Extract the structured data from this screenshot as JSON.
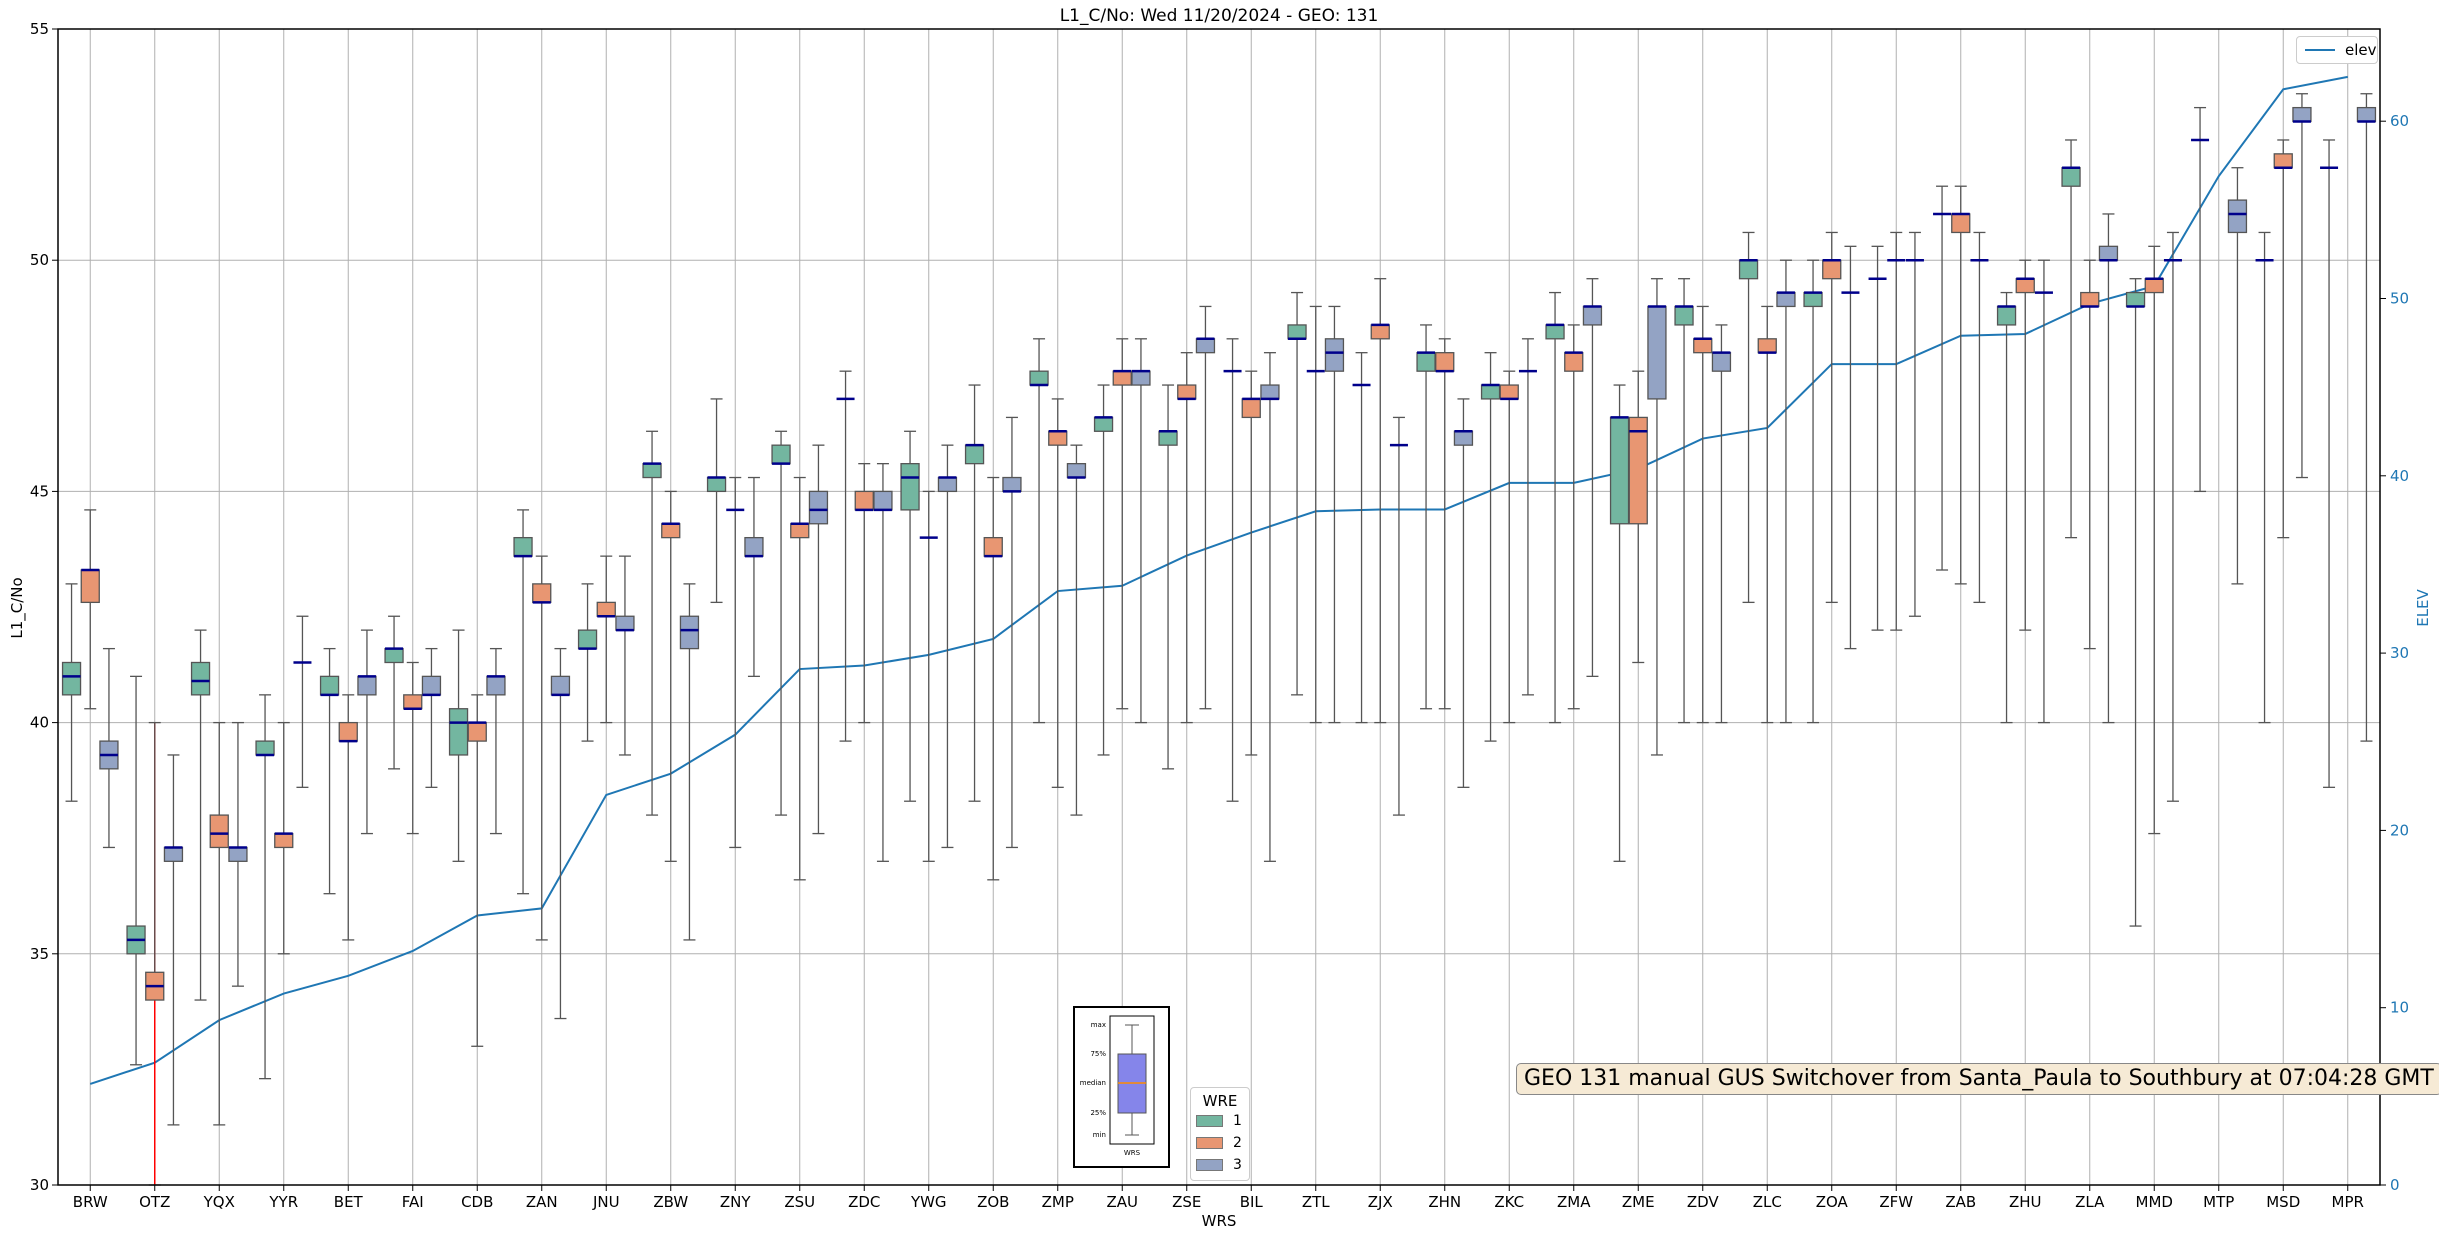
{
  "chart_data": {
    "type": "box",
    "title": "L1_C/No: Wed 11/20/2024 - GEO: 131",
    "xlabel": "WRS",
    "ylabel": "L1_C/No",
    "y2label": "ELEV",
    "ylim": [
      30,
      55
    ],
    "yticks": [
      30,
      35,
      40,
      45,
      50,
      55
    ],
    "y2lim": [
      0,
      65.2
    ],
    "y2ticks": [
      0,
      10,
      20,
      30,
      40,
      50,
      60
    ],
    "grid": true,
    "stat_order": [
      "min",
      "q1",
      "median",
      "q3",
      "max"
    ],
    "categories": [
      "BRW",
      "OTZ",
      "YQX",
      "YYR",
      "BET",
      "FAI",
      "CDB",
      "ZAN",
      "JNU",
      "ZBW",
      "ZNY",
      "ZSU",
      "ZDC",
      "YWG",
      "ZOB",
      "ZMP",
      "ZAU",
      "ZSE",
      "BIL",
      "ZTL",
      "ZJX",
      "ZHN",
      "ZKC",
      "ZMA",
      "ZME",
      "ZDV",
      "ZLC",
      "ZOA",
      "ZFW",
      "ZAB",
      "ZHU",
      "ZLA",
      "MMD",
      "MTP",
      "MSD",
      "MPR"
    ],
    "series": [
      {
        "name": "1",
        "color": "#73b6a0",
        "boxes": [
          [
            38.3,
            40.6,
            41.0,
            41.3,
            43.0
          ],
          [
            32.6,
            35.0,
            35.3,
            35.6,
            41.0
          ],
          [
            34.0,
            40.6,
            40.9,
            41.3,
            42.0
          ],
          [
            32.3,
            39.3,
            39.3,
            39.6,
            40.6
          ],
          [
            36.3,
            40.6,
            40.6,
            41.0,
            41.6
          ],
          [
            39.0,
            41.3,
            41.6,
            41.6,
            42.3
          ],
          [
            37.0,
            39.3,
            40.0,
            40.3,
            42.0
          ],
          [
            36.3,
            43.6,
            43.6,
            44.0,
            44.6
          ],
          [
            39.6,
            41.6,
            41.6,
            42.0,
            43.0
          ],
          [
            38.0,
            45.3,
            45.6,
            45.6,
            46.3
          ],
          [
            42.6,
            45.0,
            45.3,
            45.3,
            47.0
          ],
          [
            38.0,
            45.6,
            45.6,
            46.0,
            46.3
          ],
          [
            39.6,
            47.0,
            47.0,
            47.0,
            47.6
          ],
          [
            38.3,
            44.6,
            45.3,
            45.6,
            46.3
          ],
          [
            38.3,
            45.6,
            46.0,
            46.0,
            47.3
          ],
          [
            40.0,
            47.3,
            47.3,
            47.6,
            48.3
          ],
          [
            39.3,
            46.3,
            46.6,
            46.6,
            47.3
          ],
          [
            39.0,
            46.0,
            46.3,
            46.3,
            47.3
          ],
          [
            38.3,
            47.6,
            47.6,
            47.6,
            48.3
          ],
          [
            40.6,
            48.3,
            48.3,
            48.6,
            49.3
          ],
          [
            40.0,
            47.3,
            47.3,
            47.3,
            48.0
          ],
          [
            40.3,
            47.6,
            48.0,
            48.0,
            48.6
          ],
          [
            39.6,
            47.0,
            47.3,
            47.3,
            48.0
          ],
          [
            40.0,
            48.3,
            48.6,
            48.6,
            49.3
          ],
          [
            37.0,
            44.3,
            46.6,
            46.6,
            47.3
          ],
          [
            40.0,
            48.6,
            49.0,
            49.0,
            49.6
          ],
          [
            42.6,
            49.6,
            50.0,
            50.0,
            50.6
          ],
          [
            40.0,
            49.0,
            49.3,
            49.3,
            50.0
          ],
          [
            42.0,
            49.6,
            49.6,
            49.6,
            50.3
          ],
          [
            43.3,
            51.0,
            51.0,
            51.0,
            51.6
          ],
          [
            40.0,
            48.6,
            49.0,
            49.0,
            49.3
          ],
          [
            44.0,
            51.6,
            52.0,
            52.0,
            52.6
          ],
          [
            35.6,
            49.0,
            49.0,
            49.3,
            49.6
          ],
          [
            45.0,
            52.6,
            52.6,
            52.6,
            53.3
          ],
          [
            40.0,
            50.0,
            50.0,
            50.0,
            50.6
          ],
          [
            38.6,
            52.0,
            52.0,
            52.0,
            52.6
          ]
        ]
      },
      {
        "name": "2",
        "color": "#e89672",
        "boxes": [
          [
            40.3,
            42.6,
            43.3,
            43.3,
            44.6
          ],
          [
            30.0,
            34.0,
            34.3,
            34.6,
            40.0
          ],
          [
            31.3,
            37.3,
            37.6,
            38.0,
            40.0
          ],
          [
            35.0,
            37.3,
            37.6,
            37.6,
            40.0
          ],
          [
            35.3,
            39.6,
            39.6,
            40.0,
            40.6
          ],
          [
            37.6,
            40.3,
            40.3,
            40.6,
            41.3
          ],
          [
            33.0,
            39.6,
            40.0,
            40.0,
            40.6
          ],
          [
            35.3,
            42.6,
            42.6,
            43.0,
            43.6
          ],
          [
            40.0,
            42.3,
            42.3,
            42.6,
            43.6
          ],
          [
            37.0,
            44.0,
            44.3,
            44.3,
            45.0
          ],
          [
            37.3,
            44.6,
            44.6,
            44.6,
            45.3
          ],
          [
            36.6,
            44.0,
            44.3,
            44.3,
            45.3
          ],
          [
            40.0,
            44.6,
            44.6,
            45.0,
            45.6
          ],
          [
            37.0,
            44.0,
            44.0,
            44.0,
            45.0
          ],
          [
            36.6,
            43.6,
            43.6,
            44.0,
            45.3
          ],
          [
            38.6,
            46.0,
            46.3,
            46.3,
            47.0
          ],
          [
            40.3,
            47.3,
            47.6,
            47.6,
            48.3
          ],
          [
            40.0,
            47.0,
            47.0,
            47.3,
            48.0
          ],
          [
            39.3,
            46.6,
            47.0,
            47.0,
            47.6
          ],
          [
            40.0,
            47.6,
            47.6,
            47.6,
            49.0
          ],
          [
            40.0,
            48.3,
            48.6,
            48.6,
            49.6
          ],
          [
            40.3,
            47.6,
            47.6,
            48.0,
            48.3
          ],
          [
            40.0,
            47.0,
            47.0,
            47.3,
            47.6
          ],
          [
            40.3,
            47.6,
            48.0,
            48.0,
            48.6
          ],
          [
            41.3,
            44.3,
            46.3,
            46.6,
            47.6
          ],
          [
            40.0,
            48.0,
            48.3,
            48.3,
            49.0
          ],
          [
            40.0,
            48.0,
            48.0,
            48.3,
            49.0
          ],
          [
            42.6,
            49.6,
            50.0,
            50.0,
            50.6
          ],
          [
            42.0,
            50.0,
            50.0,
            50.0,
            50.6
          ],
          [
            43.0,
            50.6,
            51.0,
            51.0,
            51.6
          ],
          [
            42.0,
            49.3,
            49.6,
            49.6,
            50.0
          ],
          [
            41.6,
            49.0,
            49.0,
            49.3,
            50.0
          ],
          [
            37.6,
            49.3,
            49.6,
            49.6,
            50.3
          ],
          null,
          [
            44.0,
            52.0,
            52.0,
            52.3,
            52.6
          ],
          null
        ]
      },
      {
        "name": "3",
        "color": "#93a3c4",
        "boxes": [
          [
            37.3,
            39.0,
            39.3,
            39.6,
            41.6
          ],
          [
            31.3,
            37.0,
            37.3,
            37.3,
            39.3
          ],
          [
            34.3,
            37.0,
            37.3,
            37.3,
            40.0
          ],
          [
            38.6,
            41.3,
            41.3,
            41.3,
            42.3
          ],
          [
            37.6,
            40.6,
            41.0,
            41.0,
            42.0
          ],
          [
            38.6,
            40.6,
            40.6,
            41.0,
            41.6
          ],
          [
            37.6,
            40.6,
            41.0,
            41.0,
            41.6
          ],
          [
            33.6,
            40.6,
            40.6,
            41.0,
            41.6
          ],
          [
            39.3,
            42.0,
            42.0,
            42.3,
            43.6
          ],
          [
            35.3,
            41.6,
            42.0,
            42.3,
            43.0
          ],
          [
            41.0,
            43.6,
            43.6,
            44.0,
            45.3
          ],
          [
            37.6,
            44.3,
            44.6,
            45.0,
            46.0
          ],
          [
            37.0,
            44.6,
            44.6,
            45.0,
            45.6
          ],
          [
            37.3,
            45.0,
            45.3,
            45.3,
            46.0
          ],
          [
            37.3,
            45.0,
            45.0,
            45.3,
            46.6
          ],
          [
            38.0,
            45.3,
            45.3,
            45.6,
            46.0
          ],
          [
            40.0,
            47.3,
            47.6,
            47.6,
            48.3
          ],
          [
            40.3,
            48.0,
            48.3,
            48.3,
            49.0
          ],
          [
            37.0,
            47.0,
            47.0,
            47.3,
            48.0
          ],
          [
            40.0,
            47.6,
            48.0,
            48.3,
            49.0
          ],
          [
            38.0,
            46.0,
            46.0,
            46.0,
            46.6
          ],
          [
            38.6,
            46.0,
            46.3,
            46.3,
            47.0
          ],
          [
            40.6,
            47.6,
            47.6,
            47.6,
            48.3
          ],
          [
            41.0,
            48.6,
            49.0,
            49.0,
            49.6
          ],
          [
            39.3,
            47.0,
            49.0,
            49.0,
            49.6
          ],
          [
            40.0,
            47.6,
            48.0,
            48.0,
            48.6
          ],
          [
            40.0,
            49.0,
            49.3,
            49.3,
            50.0
          ],
          [
            41.6,
            49.3,
            49.3,
            49.3,
            50.3
          ],
          [
            42.3,
            50.0,
            50.0,
            50.0,
            50.6
          ],
          [
            42.6,
            50.0,
            50.0,
            50.0,
            50.6
          ],
          [
            40.0,
            49.3,
            49.3,
            49.3,
            50.0
          ],
          [
            40.0,
            50.0,
            50.0,
            50.3,
            51.0
          ],
          [
            38.3,
            50.0,
            50.0,
            50.0,
            50.6
          ],
          [
            43.0,
            50.6,
            51.0,
            51.3,
            52.0
          ],
          [
            45.3,
            53.0,
            53.0,
            53.3,
            53.6
          ],
          [
            39.6,
            53.0,
            53.0,
            53.3,
            53.6
          ]
        ]
      }
    ],
    "elev": {
      "name": "elev",
      "color": "#1f77b4",
      "values": [
        5.7,
        6.9,
        9.3,
        10.8,
        11.8,
        13.2,
        15.2,
        15.6,
        22.0,
        23.2,
        25.4,
        29.1,
        29.3,
        29.9,
        30.8,
        33.5,
        33.8,
        35.5,
        36.8,
        38.0,
        38.1,
        38.1,
        39.6,
        39.6,
        40.4,
        42.1,
        42.7,
        46.3,
        46.3,
        47.9,
        48.0,
        49.7,
        50.7,
        56.9,
        61.8,
        62.5
      ]
    },
    "highlight": {
      "category": "OTZ",
      "range": [
        30,
        40
      ],
      "color": "#ff0000"
    },
    "median_color": "#00008b",
    "legend_wre": {
      "title": "WRE",
      "placement": "bottom-center",
      "entries": [
        "1",
        "2",
        "3"
      ]
    },
    "legend_elev": {
      "placement": "top-right",
      "label": "elev"
    },
    "key_inset": {
      "labels": [
        "max",
        "75%",
        "median",
        "25%",
        "min"
      ],
      "xlabel": "WRS"
    },
    "annotation": "GEO 131 manual GUS Switchover from Santa_Paula to Southbury at 07:04:28 GMT"
  }
}
